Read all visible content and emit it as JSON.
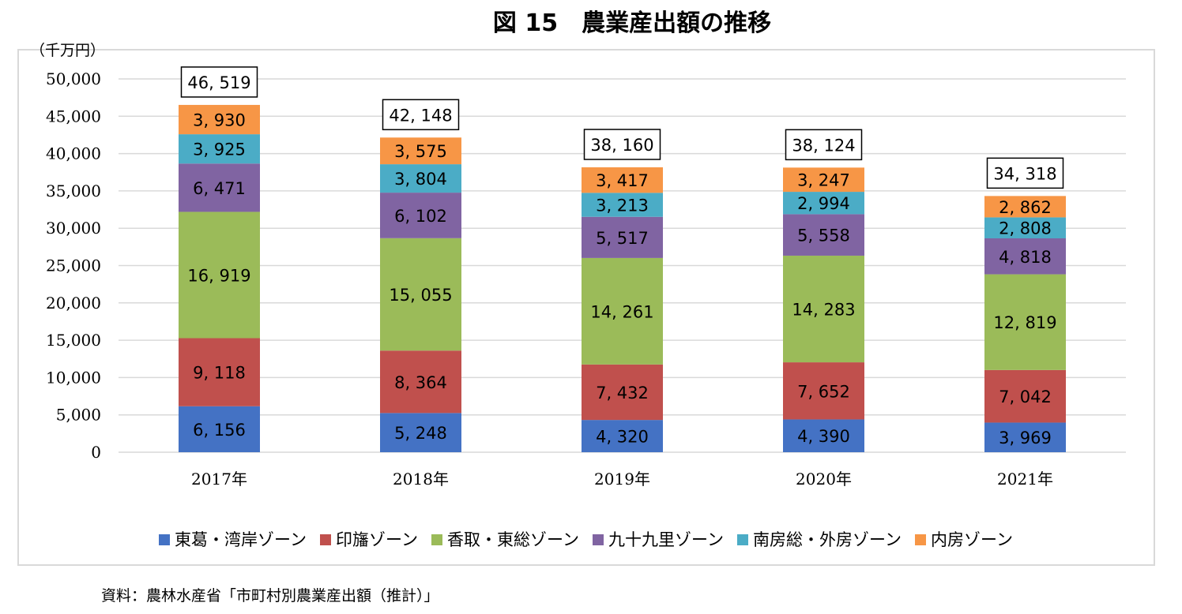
{
  "source": "資料：農林水産省「市町村別農業産出額（推計）」",
  "chart_data": {
    "type": "bar",
    "stacked": true,
    "title": "図 15　農業産出額の推移",
    "ylabel": "（千万円）",
    "ylim": [
      0,
      50000
    ],
    "yticks": [
      0,
      5000,
      10000,
      15000,
      20000,
      25000,
      30000,
      35000,
      40000,
      45000,
      50000
    ],
    "ytick_labels": [
      "0",
      "5,000",
      "10,000",
      "15,000",
      "20,000",
      "25,000",
      "30,000",
      "35,000",
      "40,000",
      "45,000",
      "50,000"
    ],
    "grid": true,
    "legend_position": "bottom",
    "categories": [
      "2017年",
      "2018年",
      "2019年",
      "2020年",
      "2021年"
    ],
    "series": [
      {
        "name": "東葛・湾岸ゾーン",
        "color": "#4472c4",
        "values": [
          6156,
          5248,
          4320,
          4390,
          3969
        ],
        "labels": [
          "6, 156",
          "5, 248",
          "4, 320",
          "4, 390",
          "3, 969"
        ]
      },
      {
        "name": "印旛ゾーン",
        "color": "#c0504d",
        "values": [
          9118,
          8364,
          7432,
          7652,
          7042
        ],
        "labels": [
          "9, 118",
          "8, 364",
          "7, 432",
          "7, 652",
          "7, 042"
        ]
      },
      {
        "name": "香取・東総ゾーン",
        "color": "#9bbb59",
        "values": [
          16919,
          15055,
          14261,
          14283,
          12819
        ],
        "labels": [
          "16, 919",
          "15, 055",
          "14, 261",
          "14, 283",
          "12, 819"
        ]
      },
      {
        "name": "九十九里ゾーン",
        "color": "#8064a2",
        "values": [
          6471,
          6102,
          5517,
          5558,
          4818
        ],
        "labels": [
          "6, 471",
          "6, 102",
          "5, 517",
          "5, 558",
          "4, 818"
        ]
      },
      {
        "name": "南房総・外房ゾーン",
        "color": "#4bacc6",
        "values": [
          3925,
          3804,
          3213,
          2994,
          2808
        ],
        "labels": [
          "3, 925",
          "3, 804",
          "3, 213",
          "2, 994",
          "2, 808"
        ]
      },
      {
        "name": "内房ゾーン",
        "color": "#f79646",
        "values": [
          3930,
          3575,
          3417,
          3247,
          2862
        ],
        "labels": [
          "3, 930",
          "3, 575",
          "3, 417",
          "3, 247",
          "2, 862"
        ]
      }
    ],
    "totals": [
      46519,
      42148,
      38160,
      38124,
      34318
    ],
    "total_labels": [
      "46, 519",
      "42, 148",
      "38, 160",
      "38, 124",
      "34, 318"
    ]
  }
}
